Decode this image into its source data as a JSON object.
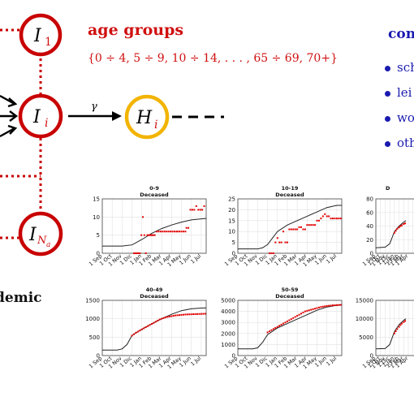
{
  "header": {
    "title": "age groups",
    "age_list": "{0 ÷ 4, 5 ÷ 9, 10 ÷ 14, . . . , 65 ÷ 69, 70+}"
  },
  "right_panel": {
    "heading": "con",
    "bullets": [
      "sch",
      "lei",
      "wo",
      "oth"
    ]
  },
  "left_caption": "demic",
  "nodes": {
    "I1": {
      "main": "I",
      "sub": "1"
    },
    "Ii": {
      "main": "I",
      "sub": "i"
    },
    "INa": {
      "main": "I",
      "sub": "N",
      "subsub": "a"
    },
    "Hi": {
      "main": "H",
      "sub": "i"
    }
  },
  "edge_label": "γ",
  "colors": {
    "red": "#c80000",
    "amber": "#f2b400",
    "blue": "#1a1ab0",
    "model": "#222222",
    "dots": "#e00000"
  },
  "x_ticks": [
    "1 Sep",
    "1 Oct",
    "1 Nov",
    "1 Dic",
    "1 Jan",
    "1 Feb",
    "1 Mar",
    "1 Apr",
    "1 May",
    "1 Jun",
    "1 Jul"
  ],
  "chart_data": [
    {
      "type": "scatter",
      "title": "0-9",
      "subtitle": "Deceased",
      "ylim": [
        0,
        15
      ],
      "yticks": [
        0,
        5,
        10,
        15
      ],
      "x": [
        3.2,
        3.35,
        3.5,
        3.65,
        3.8,
        3.95,
        4.1,
        4.25,
        4.4,
        4.55,
        4.7,
        4.85,
        5.0,
        5.15,
        5.3,
        5.5,
        5.7,
        5.9,
        6.1,
        6.3,
        6.5,
        6.7,
        6.9,
        7.1,
        7.3,
        7.5,
        7.6,
        7.8,
        8.0,
        8.2,
        8.4,
        8.5,
        8.7,
        8.9,
        9.1,
        9.3,
        9.5,
        9.7,
        9.9,
        10.1,
        10.3
      ],
      "y": [
        0,
        0,
        0,
        0,
        0,
        5,
        10,
        5,
        0,
        5,
        5,
        5,
        5,
        5,
        5,
        6,
        6,
        6,
        6,
        6,
        6,
        6,
        6,
        6,
        6,
        6,
        6,
        6,
        6,
        6,
        6,
        7,
        7,
        12,
        12,
        12,
        13,
        12,
        12,
        12,
        13
      ],
      "model_x": [
        0,
        2,
        3,
        4,
        5,
        6,
        7,
        8,
        9,
        10,
        10.5
      ],
      "model_y": [
        2,
        2,
        2.3,
        3.8,
        5.5,
        6.8,
        7.8,
        8.6,
        9.2,
        9.5,
        9.6
      ]
    },
    {
      "type": "scatter",
      "title": "10-19",
      "subtitle": "Deceased",
      "ylim": [
        0,
        25
      ],
      "yticks": [
        0,
        5,
        10,
        15,
        20,
        25
      ],
      "x": [
        3.2,
        3.4,
        3.6,
        3.8,
        4.0,
        4.2,
        4.4,
        4.6,
        4.8,
        5.0,
        5.2,
        5.4,
        5.6,
        5.8,
        6.0,
        6.2,
        6.4,
        6.6,
        6.8,
        7.0,
        7.2,
        7.4,
        7.6,
        7.8,
        8.0,
        8.2,
        8.4,
        8.6,
        8.8,
        9.0,
        9.2,
        9.4,
        9.6,
        9.8,
        10.0,
        10.2,
        10.4
      ],
      "y": [
        0,
        0,
        0,
        5,
        7,
        5,
        5,
        10,
        5,
        5,
        11,
        11,
        11,
        11,
        11,
        12,
        12,
        11,
        11,
        13,
        13,
        13,
        13,
        13,
        15,
        15,
        16,
        17,
        18,
        17,
        17,
        16,
        16,
        16,
        16,
        16,
        16
      ],
      "model_x": [
        0,
        2,
        2.5,
        3,
        3.5,
        4,
        5,
        6,
        7,
        8,
        9,
        10,
        10.5
      ],
      "model_y": [
        2,
        2,
        2.5,
        4,
        7,
        10,
        13,
        15,
        17,
        19,
        21,
        22,
        22
      ]
    },
    {
      "type": "scatter",
      "title": "D",
      "subtitle": "",
      "ylim": [
        0,
        80
      ],
      "yticks": [
        0,
        20,
        40,
        60,
        80
      ],
      "x": [
        4,
        4.3,
        4.6,
        5,
        5.3,
        5.6,
        6,
        6.3
      ],
      "y": [
        30,
        33,
        36,
        38,
        40,
        41,
        43,
        44
      ],
      "model_x": [
        0,
        2,
        3,
        4,
        5,
        6,
        6.5
      ],
      "model_y": [
        8,
        9,
        14,
        32,
        40,
        46,
        48
      ]
    },
    {
      "type": "scatter",
      "title": "40-49",
      "subtitle": "Deceased",
      "ylim": [
        0,
        1500
      ],
      "yticks": [
        0,
        500,
        1000,
        1500
      ],
      "x": [
        3.0,
        3.2,
        3.4,
        3.6,
        3.8,
        4.0,
        4.2,
        4.4,
        4.6,
        4.8,
        5.0,
        5.2,
        5.4,
        5.6,
        5.8,
        6.0,
        6.2,
        6.4,
        6.6,
        6.8,
        7.0,
        7.2,
        7.4,
        7.6,
        7.8,
        8.0,
        8.2,
        8.4,
        8.6,
        8.8,
        9.0,
        9.2,
        9.4,
        9.6,
        9.8,
        10.0,
        10.2,
        10.4
      ],
      "y": [
        540,
        580,
        620,
        650,
        680,
        710,
        740,
        770,
        800,
        830,
        860,
        890,
        920,
        950,
        980,
        1000,
        1020,
        1040,
        1050,
        1060,
        1070,
        1080,
        1090,
        1095,
        1100,
        1105,
        1110,
        1115,
        1118,
        1120,
        1122,
        1124,
        1126,
        1128,
        1130,
        1132,
        1134,
        1136
      ],
      "model_x": [
        0,
        1.5,
        2,
        2.5,
        3,
        4,
        5,
        6,
        7,
        8,
        9,
        10,
        10.5
      ],
      "model_y": [
        150,
        150,
        180,
        300,
        550,
        720,
        860,
        1000,
        1120,
        1220,
        1270,
        1290,
        1295
      ]
    },
    {
      "type": "scatter",
      "title": "50-59",
      "subtitle": "Deceased",
      "ylim": [
        0,
        5000
      ],
      "yticks": [
        0,
        1000,
        2000,
        3000,
        4000,
        5000
      ],
      "x": [
        3.0,
        3.2,
        3.4,
        3.6,
        3.8,
        4.0,
        4.2,
        4.4,
        4.6,
        4.8,
        5.0,
        5.2,
        5.4,
        5.6,
        5.8,
        6.0,
        6.2,
        6.4,
        6.6,
        6.8,
        7.0,
        7.2,
        7.4,
        7.6,
        7.8,
        8.0,
        8.2,
        8.4,
        8.6,
        8.8,
        9.0,
        9.2,
        9.4,
        9.6,
        9.8,
        10.0,
        10.2,
        10.4
      ],
      "y": [
        2100,
        2200,
        2300,
        2400,
        2500,
        2600,
        2700,
        2800,
        2900,
        3000,
        3100,
        3200,
        3300,
        3400,
        3500,
        3600,
        3700,
        3800,
        3900,
        4000,
        4050,
        4100,
        4150,
        4200,
        4250,
        4300,
        4350,
        4400,
        4430,
        4460,
        4490,
        4510,
        4530,
        4550,
        4560,
        4570,
        4580,
        4590
      ],
      "model_x": [
        0,
        1.5,
        2,
        2.5,
        3,
        4,
        5,
        6,
        7,
        8,
        9,
        10,
        10.5
      ],
      "model_y": [
        600,
        600,
        700,
        1200,
        1900,
        2500,
        2900,
        3300,
        3700,
        4100,
        4400,
        4550,
        4600
      ]
    },
    {
      "type": "scatter",
      "title": "",
      "subtitle": "",
      "ylim": [
        0,
        15000
      ],
      "yticks": [
        0,
        5000,
        10000,
        15000
      ],
      "x": [
        4,
        4.3,
        4.6,
        5,
        5.3,
        5.6,
        6,
        6.3
      ],
      "y": [
        6000,
        6600,
        7200,
        7800,
        8300,
        8700,
        9100,
        9400
      ],
      "model_x": [
        0,
        2,
        3,
        4,
        5,
        6,
        6.5
      ],
      "model_y": [
        1800,
        1900,
        3000,
        6500,
        8400,
        9600,
        10000
      ]
    }
  ]
}
